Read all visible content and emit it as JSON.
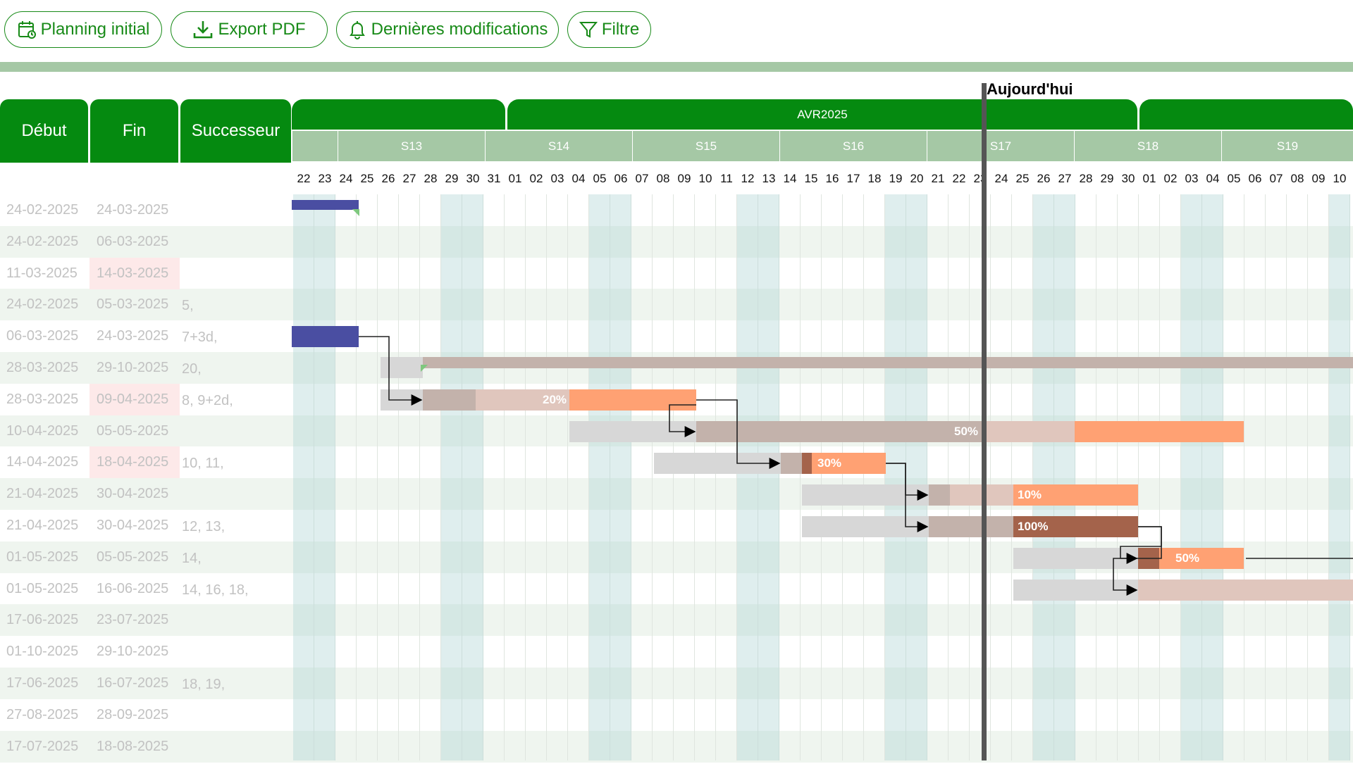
{
  "toolbar": {
    "planning_label": "Planning initial",
    "export_label": "Export PDF",
    "changes_label": "Dernières modifications",
    "filter_label": "Filtre"
  },
  "columns": {
    "start": "Début",
    "end": "Fin",
    "successor": "Successeur"
  },
  "timeline": {
    "month": "AVR2025",
    "weeks": [
      "S13",
      "S14",
      "S15",
      "S16",
      "S17",
      "S18",
      "S19"
    ],
    "days": [
      "22",
      "23",
      "24",
      "25",
      "26",
      "27",
      "28",
      "29",
      "30",
      "31",
      "01",
      "02",
      "03",
      "04",
      "05",
      "06",
      "07",
      "08",
      "09",
      "10",
      "11",
      "12",
      "13",
      "14",
      "15",
      "16",
      "17",
      "18",
      "19",
      "20",
      "21",
      "22",
      "23",
      "24",
      "25",
      "26",
      "27",
      "28",
      "29",
      "30",
      "01",
      "02",
      "03",
      "04",
      "05",
      "06",
      "07",
      "08",
      "09",
      "10"
    ],
    "today_label": "Aujourd'hui"
  },
  "rows": [
    {
      "start": "24-02-2025",
      "end": "24-03-2025",
      "succ": "",
      "end_late": false
    },
    {
      "start": "24-02-2025",
      "end": "06-03-2025",
      "succ": "",
      "end_late": false
    },
    {
      "start": "11-03-2025",
      "end": "14-03-2025",
      "succ": "",
      "end_late": true
    },
    {
      "start": "24-02-2025",
      "end": "05-03-2025",
      "succ": "5,",
      "end_late": false
    },
    {
      "start": "06-03-2025",
      "end": "24-03-2025",
      "succ": "7+3d,",
      "end_late": false
    },
    {
      "start": "28-03-2025",
      "end": "29-10-2025",
      "succ": "20,",
      "end_late": false
    },
    {
      "start": "28-03-2025",
      "end": "09-04-2025",
      "succ": "8, 9+2d,",
      "end_late": true
    },
    {
      "start": "10-04-2025",
      "end": "05-05-2025",
      "succ": "",
      "end_late": false
    },
    {
      "start": "14-04-2025",
      "end": "18-04-2025",
      "succ": "10, 11,",
      "end_late": true
    },
    {
      "start": "21-04-2025",
      "end": "30-04-2025",
      "succ": "",
      "end_late": false
    },
    {
      "start": "21-04-2025",
      "end": "30-04-2025",
      "succ": "12, 13,",
      "end_late": false
    },
    {
      "start": "01-05-2025",
      "end": "05-05-2025",
      "succ": "14,",
      "end_late": false
    },
    {
      "start": "01-05-2025",
      "end": "16-06-2025",
      "succ": "14, 16, 18,",
      "end_late": false
    },
    {
      "start": "17-06-2025",
      "end": "23-07-2025",
      "succ": "",
      "end_late": false
    },
    {
      "start": "01-10-2025",
      "end": "29-10-2025",
      "succ": "",
      "end_late": false
    },
    {
      "start": "17-06-2025",
      "end": "16-07-2025",
      "succ": "18, 19,",
      "end_late": false
    },
    {
      "start": "27-08-2025",
      "end": "28-09-2025",
      "succ": "",
      "end_late": false
    },
    {
      "start": "17-07-2025",
      "end": "18-08-2025",
      "succ": "",
      "end_late": false
    }
  ],
  "progress_labels": {
    "r6": "20%",
    "r7": "50%",
    "r8": "30%",
    "r9": "10%",
    "r10": "100%",
    "r11": "50%"
  },
  "colors": {
    "brand_green": "#058a10",
    "week_green": "#a5c8a5",
    "bar_blue": "#4a4ea2",
    "bar_orange": "#ffa173",
    "bar_brown": "#a4634b",
    "bar_tan": "#c3b2ab",
    "bar_grey": "#d7d7d7"
  }
}
